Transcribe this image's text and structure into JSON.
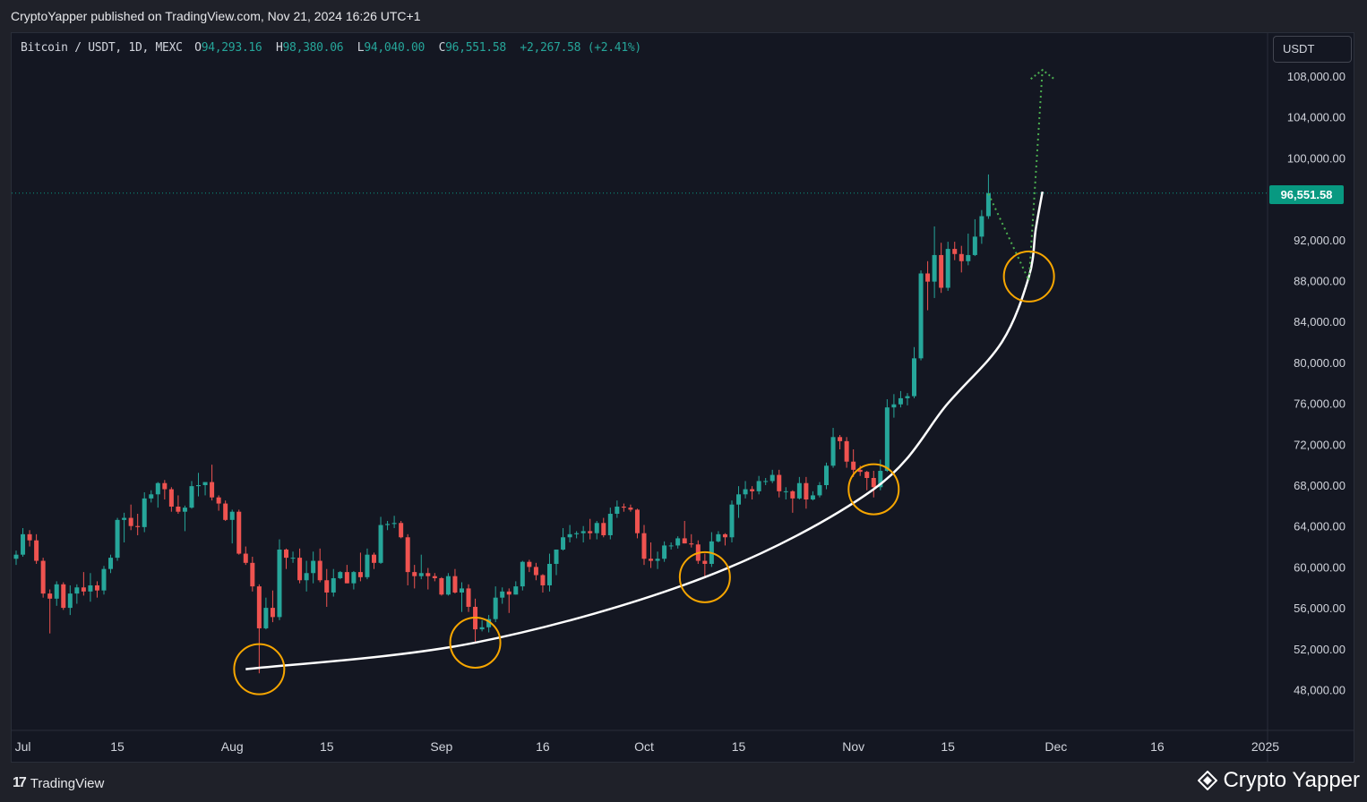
{
  "header": {
    "publish_line": "CryptoYapper published on TradingView.com, Nov 21, 2024 16:26 UTC+1"
  },
  "legend": {
    "symbol": "Bitcoin / USDT, 1D, MEXC",
    "o_label": "O",
    "o_value": "94,293.16",
    "h_label": "H",
    "h_value": "98,380.06",
    "l_label": "L",
    "l_value": "94,040.00",
    "c_label": "C",
    "c_value": "96,551.58",
    "change": "+2,267.58 (+2.41%)"
  },
  "currency": "USDT",
  "last_price_label": "96,551.58",
  "footer": {
    "tv_logo": "17",
    "tv_label": "TradingView",
    "author_label": "Crypto Yapper"
  },
  "colors": {
    "up": "#26a69a",
    "down": "#ef5350",
    "background": "#141722",
    "curve": "#ffffff",
    "circle": "#f7a600",
    "projection": "#4caf50",
    "price_line": "#089981"
  },
  "chart_data": {
    "type": "candlestick",
    "title": "Bitcoin / USDT, 1D, MEXC",
    "y_ticks": [
      "108,000.00",
      "104,000.00",
      "100,000.00",
      "92,000.00",
      "88,000.00",
      "84,000.00",
      "80,000.00",
      "76,000.00",
      "72,000.00",
      "68,000.00",
      "64,000.00",
      "60,000.00",
      "56,000.00",
      "52,000.00",
      "48,000.00"
    ],
    "y_tick_values": [
      108000,
      104000,
      100000,
      92000,
      88000,
      84000,
      80000,
      76000,
      72000,
      68000,
      64000,
      60000,
      56000,
      52000,
      48000
    ],
    "x_ticks": [
      "Jul",
      "15",
      "Aug",
      "15",
      "Sep",
      "16",
      "Oct",
      "15",
      "Nov",
      "15",
      "Dec",
      "16",
      "2025"
    ],
    "x_tick_dates": [
      "2024-07-01",
      "2024-07-15",
      "2024-08-01",
      "2024-08-15",
      "2024-09-01",
      "2024-09-16",
      "2024-10-01",
      "2024-10-15",
      "2024-11-01",
      "2024-11-15",
      "2024-12-01",
      "2024-12-16",
      "2025-01-01"
    ],
    "ylim": [
      45000,
      111000
    ],
    "xlim": [
      "2024-06-30",
      "2025-01-02"
    ],
    "last_price": 96551.58,
    "circles_at": [
      {
        "date": "2024-08-05",
        "price": 50000
      },
      {
        "date": "2024-09-06",
        "price": 52600
      },
      {
        "date": "2024-10-10",
        "price": 59000
      },
      {
        "date": "2024-11-04",
        "price": 67600
      },
      {
        "date": "2024-11-27",
        "price": 88400
      }
    ],
    "curve": [
      {
        "date": "2024-08-03",
        "price": 50000
      },
      {
        "date": "2024-09-06",
        "price": 52600
      },
      {
        "date": "2024-10-10",
        "price": 59000
      },
      {
        "date": "2024-11-04",
        "price": 67600
      },
      {
        "date": "2024-11-15",
        "price": 76000
      },
      {
        "date": "2024-11-23",
        "price": 82000
      },
      {
        "date": "2024-11-27",
        "price": 88400
      },
      {
        "date": "2024-11-28",
        "price": 93000
      },
      {
        "date": "2024-11-29",
        "price": 96700
      }
    ],
    "projection": [
      {
        "date": "2024-11-21",
        "price": 96500
      },
      {
        "date": "2024-11-27",
        "price": 88000
      },
      {
        "date": "2024-11-29",
        "price": 108600
      }
    ],
    "candles": [
      [
        "2024-06-30",
        60800,
        61600,
        60200,
        61200
      ],
      [
        "2024-07-01",
        61200,
        63800,
        61000,
        63200
      ],
      [
        "2024-07-02",
        63200,
        63600,
        62000,
        62600
      ],
      [
        "2024-07-03",
        62600,
        63200,
        60300,
        60600
      ],
      [
        "2024-07-04",
        60600,
        60900,
        57000,
        57400
      ],
      [
        "2024-07-05",
        57400,
        57800,
        53500,
        56900
      ],
      [
        "2024-07-06",
        56900,
        58600,
        56200,
        58300
      ],
      [
        "2024-07-07",
        58300,
        58500,
        55800,
        56000
      ],
      [
        "2024-07-08",
        56000,
        58200,
        55300,
        57400
      ],
      [
        "2024-07-09",
        57400,
        58300,
        56400,
        58000
      ],
      [
        "2024-07-10",
        58000,
        59500,
        57200,
        57600
      ],
      [
        "2024-07-11",
        57600,
        59400,
        56600,
        58200
      ],
      [
        "2024-07-12",
        58200,
        58600,
        57000,
        57700
      ],
      [
        "2024-07-13",
        57700,
        60100,
        57300,
        59800
      ],
      [
        "2024-07-14",
        59800,
        61200,
        59400,
        60900
      ],
      [
        "2024-07-15",
        60900,
        64800,
        60600,
        64600
      ],
      [
        "2024-07-16",
        64600,
        65300,
        62400,
        64800
      ],
      [
        "2024-07-17",
        64800,
        66100,
        63600,
        64000
      ],
      [
        "2024-07-18",
        64000,
        65200,
        63100,
        63900
      ],
      [
        "2024-07-19",
        63900,
        67300,
        63400,
        66700
      ],
      [
        "2024-07-20",
        66700,
        67500,
        66300,
        67100
      ],
      [
        "2024-07-21",
        67100,
        68300,
        65800,
        68200
      ],
      [
        "2024-07-22",
        68200,
        68500,
        66600,
        67600
      ],
      [
        "2024-07-23",
        67600,
        67800,
        65400,
        65900
      ],
      [
        "2024-07-24",
        65900,
        67000,
        65200,
        65400
      ],
      [
        "2024-07-25",
        65400,
        66000,
        63500,
        65800
      ],
      [
        "2024-07-26",
        65800,
        68400,
        65700,
        67900
      ],
      [
        "2024-07-27",
        67900,
        69200,
        66900,
        68000
      ],
      [
        "2024-07-28",
        68000,
        68200,
        67000,
        68300
      ],
      [
        "2024-07-29",
        68300,
        70000,
        66500,
        66800
      ],
      [
        "2024-07-30",
        66800,
        67000,
        65500,
        66200
      ],
      [
        "2024-07-31",
        66200,
        66500,
        64500,
        64600
      ],
      [
        "2024-08-01",
        64600,
        65600,
        62300,
        65400
      ],
      [
        "2024-08-02",
        65400,
        65600,
        61200,
        61300
      ],
      [
        "2024-08-03",
        61300,
        62000,
        60200,
        60400
      ],
      [
        "2024-08-04",
        60400,
        61000,
        57600,
        58100
      ],
      [
        "2024-08-05",
        58100,
        58300,
        49600,
        54000
      ],
      [
        "2024-08-06",
        54000,
        57000,
        53900,
        56000
      ],
      [
        "2024-08-07",
        56000,
        57700,
        54600,
        55100
      ],
      [
        "2024-08-08",
        55100,
        62700,
        54800,
        61700
      ],
      [
        "2024-08-09",
        61700,
        61800,
        59800,
        60900
      ],
      [
        "2024-08-10",
        60900,
        61500,
        60400,
        60900
      ],
      [
        "2024-08-11",
        60900,
        61800,
        58400,
        58700
      ],
      [
        "2024-08-12",
        58700,
        60600,
        57600,
        59400
      ],
      [
        "2024-08-13",
        59400,
        61500,
        58400,
        60600
      ],
      [
        "2024-08-14",
        60600,
        61800,
        58500,
        58700
      ],
      [
        "2024-08-15",
        58700,
        59800,
        56100,
        57500
      ],
      [
        "2024-08-16",
        57500,
        59800,
        57100,
        58900
      ],
      [
        "2024-08-17",
        58900,
        59600,
        58800,
        59500
      ],
      [
        "2024-08-18",
        59500,
        60200,
        58400,
        58400
      ],
      [
        "2024-08-19",
        58400,
        59600,
        57800,
        59500
      ],
      [
        "2024-08-20",
        59500,
        61400,
        58600,
        59000
      ],
      [
        "2024-08-21",
        59000,
        61800,
        58800,
        61200
      ],
      [
        "2024-08-22",
        61200,
        61400,
        59800,
        60400
      ],
      [
        "2024-08-23",
        60400,
        64900,
        60300,
        64100
      ],
      [
        "2024-08-24",
        64100,
        64500,
        63600,
        64200
      ],
      [
        "2024-08-25",
        64200,
        65000,
        63800,
        64300
      ],
      [
        "2024-08-26",
        64300,
        64500,
        62800,
        62900
      ],
      [
        "2024-08-27",
        62900,
        63200,
        58200,
        59500
      ],
      [
        "2024-08-28",
        59500,
        60200,
        57900,
        59100
      ],
      [
        "2024-08-29",
        59100,
        61200,
        58800,
        59400
      ],
      [
        "2024-08-30",
        59400,
        59900,
        57800,
        59100
      ],
      [
        "2024-08-31",
        59100,
        59400,
        58600,
        58900
      ],
      [
        "2024-09-01",
        58900,
        59000,
        57200,
        57300
      ],
      [
        "2024-09-02",
        57300,
        59400,
        57200,
        59100
      ],
      [
        "2024-09-03",
        59100,
        59800,
        57400,
        57500
      ],
      [
        "2024-09-04",
        57500,
        58500,
        55600,
        57900
      ],
      [
        "2024-09-05",
        57900,
        58300,
        55600,
        56100
      ],
      [
        "2024-09-06",
        56100,
        56900,
        52600,
        53900
      ],
      [
        "2024-09-07",
        53900,
        54800,
        53700,
        54100
      ],
      [
        "2024-09-08",
        54100,
        55300,
        53600,
        54900
      ],
      [
        "2024-09-09",
        54900,
        58100,
        54600,
        57000
      ],
      [
        "2024-09-10",
        57000,
        58000,
        56400,
        57600
      ],
      [
        "2024-09-11",
        57600,
        57900,
        55500,
        57300
      ],
      [
        "2024-09-12",
        57300,
        58600,
        57300,
        58100
      ],
      [
        "2024-09-13",
        58100,
        60600,
        57700,
        60500
      ],
      [
        "2024-09-14",
        60500,
        60700,
        59500,
        60000
      ],
      [
        "2024-09-15",
        60000,
        60400,
        58700,
        59200
      ],
      [
        "2024-09-16",
        59200,
        59300,
        57500,
        58200
      ],
      [
        "2024-09-17",
        58200,
        61300,
        57600,
        60300
      ],
      [
        "2024-09-18",
        60300,
        61700,
        59200,
        61700
      ],
      [
        "2024-09-19",
        61700,
        63800,
        61600,
        62900
      ],
      [
        "2024-09-20",
        62900,
        64100,
        62400,
        63200
      ],
      [
        "2024-09-21",
        63200,
        63500,
        62800,
        63300
      ],
      [
        "2024-09-22",
        63300,
        64000,
        62400,
        63500
      ],
      [
        "2024-09-23",
        63500,
        64700,
        62700,
        63300
      ],
      [
        "2024-09-24",
        63300,
        64500,
        62700,
        64300
      ],
      [
        "2024-09-25",
        64300,
        64800,
        62900,
        63100
      ],
      [
        "2024-09-26",
        63100,
        65800,
        62700,
        65200
      ],
      [
        "2024-09-27",
        65200,
        66500,
        64800,
        65900
      ],
      [
        "2024-09-28",
        65900,
        66200,
        65400,
        65800
      ],
      [
        "2024-09-29",
        65800,
        66100,
        65400,
        65600
      ],
      [
        "2024-09-30",
        65600,
        65700,
        62800,
        63300
      ],
      [
        "2024-10-01",
        63300,
        64100,
        60200,
        60800
      ],
      [
        "2024-10-02",
        60800,
        62400,
        59900,
        60600
      ],
      [
        "2024-10-03",
        60600,
        61500,
        59800,
        60800
      ],
      [
        "2024-10-04",
        60800,
        62500,
        60500,
        62100
      ],
      [
        "2024-10-05",
        62100,
        62400,
        61700,
        62100
      ],
      [
        "2024-10-06",
        62100,
        63000,
        61800,
        62800
      ],
      [
        "2024-10-07",
        62800,
        64500,
        62300,
        62300
      ],
      [
        "2024-10-08",
        62300,
        63200,
        61900,
        62200
      ],
      [
        "2024-10-09",
        62200,
        62600,
        60300,
        60600
      ],
      [
        "2024-10-10",
        60600,
        61300,
        58900,
        60300
      ],
      [
        "2024-10-11",
        60300,
        63400,
        60000,
        62500
      ],
      [
        "2024-10-12",
        62500,
        63500,
        62400,
        63200
      ],
      [
        "2024-10-13",
        63200,
        63300,
        62100,
        62900
      ],
      [
        "2024-10-14",
        62900,
        66500,
        62400,
        66100
      ],
      [
        "2024-10-15",
        66100,
        67900,
        64800,
        67100
      ],
      [
        "2024-10-16",
        67100,
        68400,
        66700,
        67600
      ],
      [
        "2024-10-17",
        67600,
        67900,
        66600,
        67400
      ],
      [
        "2024-10-18",
        67400,
        68900,
        67100,
        68400
      ],
      [
        "2024-10-19",
        68400,
        68700,
        68000,
        68400
      ],
      [
        "2024-10-20",
        68400,
        69500,
        68200,
        69000
      ],
      [
        "2024-10-21",
        69000,
        69500,
        66800,
        67400
      ],
      [
        "2024-10-22",
        67400,
        67800,
        66600,
        67400
      ],
      [
        "2024-10-23",
        67400,
        67500,
        65300,
        66700
      ],
      [
        "2024-10-24",
        66700,
        68800,
        66600,
        68200
      ],
      [
        "2024-10-25",
        68200,
        68800,
        65700,
        66600
      ],
      [
        "2024-10-26",
        66600,
        67400,
        66500,
        67000
      ],
      [
        "2024-10-27",
        67000,
        68300,
        66800,
        68000
      ],
      [
        "2024-10-28",
        68000,
        70200,
        67600,
        69900
      ],
      [
        "2024-10-29",
        69900,
        73600,
        69700,
        72700
      ],
      [
        "2024-10-30",
        72700,
        72900,
        71500,
        72300
      ],
      [
        "2024-10-31",
        72300,
        72700,
        69700,
        70300
      ],
      [
        "2024-11-01",
        70300,
        71500,
        68800,
        69500
      ],
      [
        "2024-11-02",
        69500,
        69900,
        68900,
        69300
      ],
      [
        "2024-11-03",
        69300,
        69400,
        67500,
        68700
      ],
      [
        "2024-11-04",
        68700,
        69400,
        66800,
        67800
      ],
      [
        "2024-11-05",
        67800,
        70500,
        67500,
        69400
      ],
      [
        "2024-11-06",
        69400,
        76400,
        69300,
        75600
      ],
      [
        "2024-11-07",
        75600,
        76900,
        74600,
        75900
      ],
      [
        "2024-11-08",
        75900,
        77200,
        75600,
        76500
      ],
      [
        "2024-11-09",
        76500,
        77000,
        75800,
        76700
      ],
      [
        "2024-11-10",
        76700,
        81500,
        76500,
        80400
      ],
      [
        "2024-11-11",
        80400,
        89000,
        80200,
        88700
      ],
      [
        "2024-11-12",
        88700,
        89900,
        85100,
        87900
      ],
      [
        "2024-11-13",
        87900,
        93300,
        86300,
        90500
      ],
      [
        "2024-11-14",
        90500,
        91700,
        86800,
        87300
      ],
      [
        "2024-11-15",
        87300,
        91800,
        87000,
        91100
      ],
      [
        "2024-11-16",
        91100,
        91800,
        90000,
        90600
      ],
      [
        "2024-11-17",
        90600,
        91400,
        88800,
        89900
      ],
      [
        "2024-11-18",
        89900,
        92600,
        89500,
        90500
      ],
      [
        "2024-11-19",
        90500,
        94000,
        90400,
        92300
      ],
      [
        "2024-11-20",
        92300,
        94900,
        91600,
        94300
      ],
      [
        "2024-11-21",
        94300,
        98380,
        94040,
        96551
      ]
    ]
  }
}
